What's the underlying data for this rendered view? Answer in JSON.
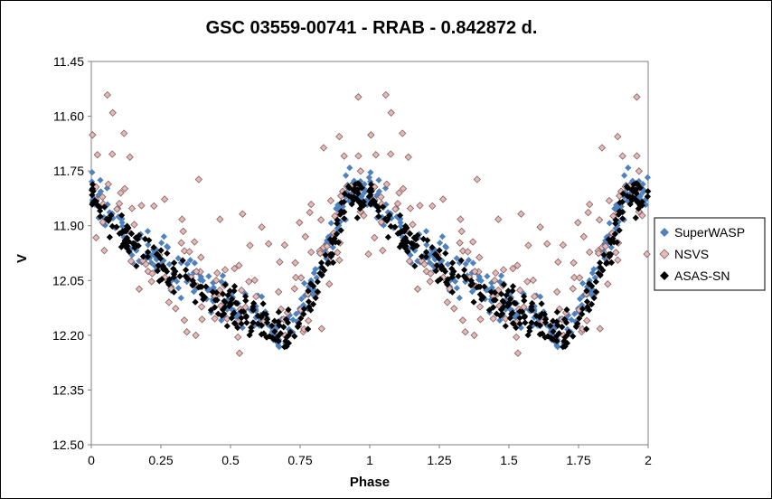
{
  "chart_data": {
    "type": "scatter",
    "title": "GSC 03559-00741  - RRAB - 0.842872 d.",
    "xlabel": "Phase",
    "ylabel": "V",
    "xlim": [
      0,
      2
    ],
    "ylim": [
      11.45,
      12.5
    ],
    "y_inverted": true,
    "x_ticks": [
      "0",
      "0.25",
      "0.5",
      "0.75",
      "1",
      "1.25",
      "1.5",
      "1.75",
      "2"
    ],
    "y_ticks": [
      "11.45",
      "11.60",
      "11.75",
      "11.90",
      "12.05",
      "12.20",
      "12.35",
      "12.50"
    ],
    "grid": false,
    "legend_position": "right",
    "series": [
      {
        "name": "SuperWASP",
        "color": "#4F81BD",
        "marker": "filled-diamond",
        "points_per_cycle": 250,
        "scatter_mag": 0.05,
        "light_curve": {
          "phase": [
            0.0,
            0.05,
            0.15,
            0.3,
            0.45,
            0.55,
            0.65,
            0.72,
            0.78,
            0.85,
            0.93,
            1.0
          ],
          "mag": [
            11.8,
            11.86,
            11.94,
            12.02,
            12.08,
            12.13,
            12.18,
            12.2,
            12.1,
            11.96,
            11.8,
            11.8
          ]
        }
      },
      {
        "name": "NSVS",
        "color": "#E6B9B8",
        "edge": "#7F6060",
        "marker": "open-diamond",
        "points_per_cycle": 140,
        "scatter_mag": 0.12,
        "light_curve": {
          "phase": [
            0.0,
            0.05,
            0.15,
            0.3,
            0.45,
            0.55,
            0.65,
            0.72,
            0.78,
            0.85,
            0.93,
            1.0
          ],
          "mag": [
            11.8,
            11.86,
            11.94,
            12.02,
            12.08,
            12.13,
            12.18,
            12.2,
            12.1,
            11.96,
            11.8,
            11.8
          ]
        }
      },
      {
        "name": "ASAS-SN",
        "color": "#000000",
        "marker": "filled-diamond",
        "points_per_cycle": 260,
        "scatter_mag": 0.045,
        "light_curve": {
          "phase": [
            0.0,
            0.05,
            0.15,
            0.3,
            0.45,
            0.55,
            0.65,
            0.72,
            0.78,
            0.85,
            0.93,
            1.0
          ],
          "mag": [
            11.82,
            11.87,
            11.95,
            12.03,
            12.09,
            12.14,
            12.18,
            12.19,
            12.12,
            11.98,
            11.82,
            11.82
          ]
        }
      }
    ]
  }
}
